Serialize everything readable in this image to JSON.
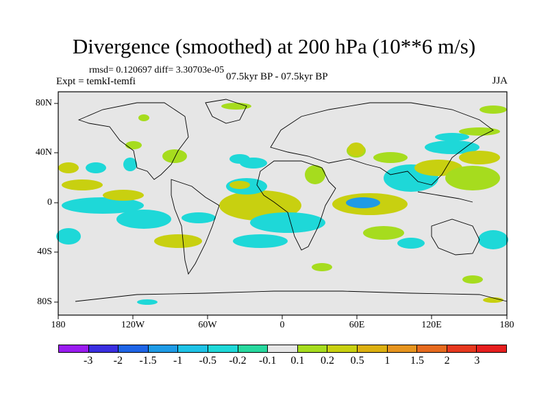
{
  "title": "Divergence (smoothed) at 200 hPa (10**6 m/s)",
  "stats": "rmsd= 0.120697 diff= 3.30703e-05",
  "expt": "Expt = temkI-temfi",
  "period": "07.5kyr BP - 07.5kyr BP",
  "season": "JJA",
  "lat_labels": [
    "80N",
    "40N",
    "0",
    "40S",
    "80S"
  ],
  "lon_labels": [
    "180",
    "120W",
    "60W",
    "0",
    "60E",
    "120E",
    "180"
  ],
  "colorbar": {
    "labels": [
      "-3",
      "-2",
      "-1.5",
      "-1",
      "-0.5",
      "-0.2",
      "-0.1",
      "0.1",
      "0.2",
      "0.5",
      "1",
      "1.5",
      "2",
      "3"
    ],
    "colors": [
      "#9a1bf0",
      "#3a2ee0",
      "#1e64e6",
      "#1e9be6",
      "#1ec2e6",
      "#1ed8d8",
      "#27d89e",
      "#e6e6e6",
      "#a6dc1e",
      "#c8d010",
      "#dcb010",
      "#e6941e",
      "#e66a1e",
      "#e6381e",
      "#e61e1e"
    ]
  },
  "colors": {
    "ocean_bg": "#e6e6e6",
    "coast": "#000000"
  }
}
